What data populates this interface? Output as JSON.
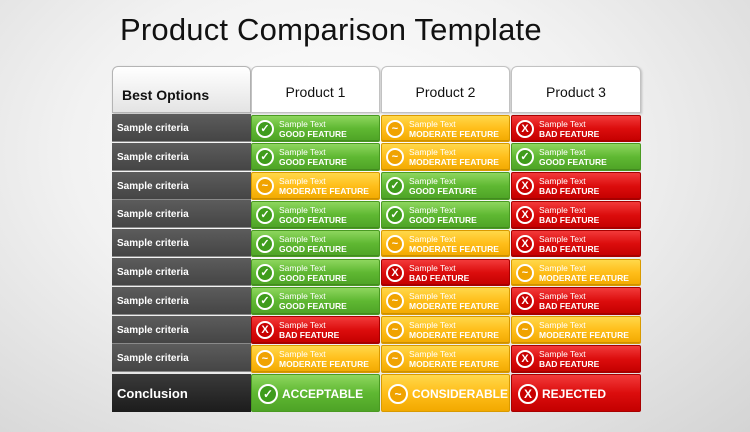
{
  "title": "Product Comparison Template",
  "header": {
    "corner": "Best Options",
    "products": [
      "Product 1",
      "Product 2",
      "Product 3"
    ]
  },
  "criteria": [
    {
      "label": "Sample criteria",
      "cells": [
        {
          "status": "good",
          "text": "Sample Text",
          "feature": "GOOD FEATURE"
        },
        {
          "status": "mod",
          "text": "Sample Text",
          "feature": "MODERATE FEATURE"
        },
        {
          "status": "bad",
          "text": "Sample Text",
          "feature": "BAD FEATURE"
        }
      ]
    },
    {
      "label": "Sample criteria",
      "cells": [
        {
          "status": "good",
          "text": "Sample Text",
          "feature": "GOOD FEATURE"
        },
        {
          "status": "mod",
          "text": "Sample Text",
          "feature": "MODERATE FEATURE"
        },
        {
          "status": "good",
          "text": "Sample Text",
          "feature": "GOOD FEATURE"
        }
      ]
    },
    {
      "label": "Sample criteria",
      "cells": [
        {
          "status": "mod",
          "text": "Sample Text",
          "feature": "MODERATE FEATURE"
        },
        {
          "status": "good",
          "text": "Sample Text",
          "feature": "GOOD FEATURE"
        },
        {
          "status": "bad",
          "text": "Sample Text",
          "feature": "BAD FEATURE"
        }
      ]
    },
    {
      "label": "Sample criteria",
      "cells": [
        {
          "status": "good",
          "text": "Sample Text",
          "feature": "GOOD FEATURE"
        },
        {
          "status": "good",
          "text": "Sample Text",
          "feature": "GOOD FEATURE"
        },
        {
          "status": "bad",
          "text": "Sample Text",
          "feature": "BAD FEATURE"
        }
      ]
    },
    {
      "label": "Sample criteria",
      "cells": [
        {
          "status": "good",
          "text": "Sample Text",
          "feature": "GOOD FEATURE"
        },
        {
          "status": "mod",
          "text": "Sample Text",
          "feature": "MODERATE FEATURE"
        },
        {
          "status": "bad",
          "text": "Sample Text",
          "feature": "BAD FEATURE"
        }
      ]
    },
    {
      "label": "Sample criteria",
      "cells": [
        {
          "status": "good",
          "text": "Sample Text",
          "feature": "GOOD FEATURE"
        },
        {
          "status": "bad",
          "text": "Sample Text",
          "feature": "BAD FEATURE"
        },
        {
          "status": "mod",
          "text": "Sample Text",
          "feature": "MODERATE FEATURE"
        }
      ]
    },
    {
      "label": "Sample criteria",
      "cells": [
        {
          "status": "good",
          "text": "Sample Text",
          "feature": "GOOD FEATURE"
        },
        {
          "status": "mod",
          "text": "Sample Text",
          "feature": "MODERATE FEATURE"
        },
        {
          "status": "bad",
          "text": "Sample Text",
          "feature": "BAD FEATURE"
        }
      ]
    },
    {
      "label": "Sample criteria",
      "cells": [
        {
          "status": "bad",
          "text": "Sample Text",
          "feature": "BAD FEATURE"
        },
        {
          "status": "mod",
          "text": "Sample Text",
          "feature": "MODERATE FEATURE"
        },
        {
          "status": "mod",
          "text": "Sample Text",
          "feature": "MODERATE FEATURE"
        }
      ]
    },
    {
      "label": "Sample criteria",
      "cells": [
        {
          "status": "mod",
          "text": "Sample Text",
          "feature": "MODERATE FEATURE"
        },
        {
          "status": "mod",
          "text": "Sample Text",
          "feature": "MODERATE FEATURE"
        },
        {
          "status": "bad",
          "text": "Sample Text",
          "feature": "BAD FEATURE"
        }
      ]
    }
  ],
  "conclusion": {
    "label": "Conclusion",
    "cells": [
      {
        "status": "good",
        "text": "ACCEPTABLE"
      },
      {
        "status": "mod",
        "text": "CONSIDERABLE"
      },
      {
        "status": "bad",
        "text": "REJECTED"
      }
    ]
  },
  "icons": {
    "good": "check-icon",
    "mod": "tilde-icon",
    "bad": "x-icon"
  },
  "glyphs": {
    "good": "✓",
    "mod": "~",
    "bad": "X"
  },
  "colors": {
    "good": "#5fb832",
    "mod": "#ffbe1a",
    "bad": "#dc0d0d",
    "criteria": "#4f4f4f",
    "conclusion": "#262626"
  }
}
